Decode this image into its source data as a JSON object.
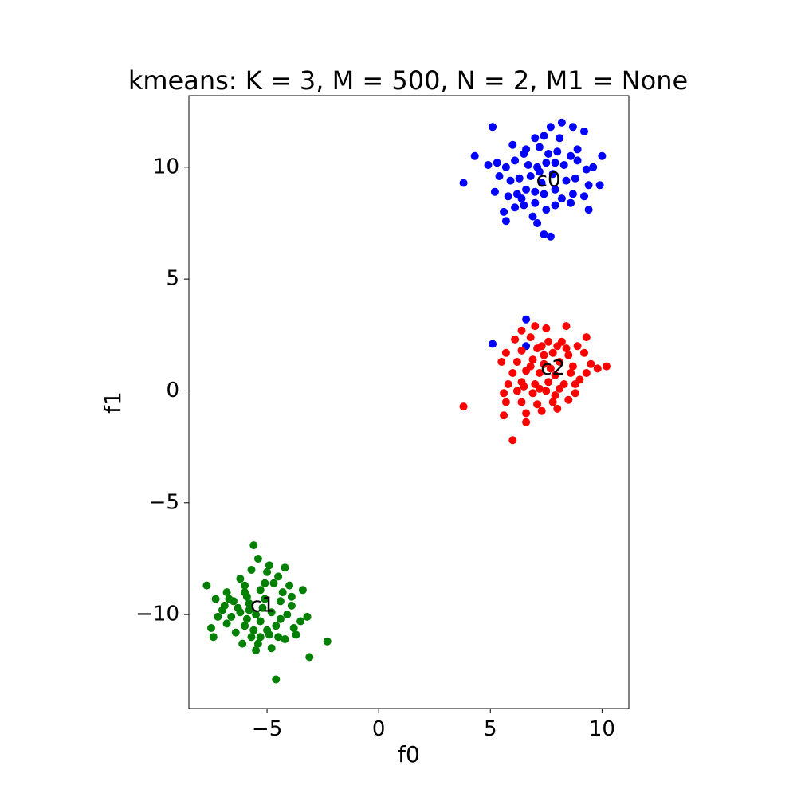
{
  "chart_data": {
    "type": "scatter",
    "title": "kmeans: K = 3, M = 500, N = 2, M1 = None",
    "xlabel": "f0",
    "ylabel": "f1",
    "xlim": [
      -8.5,
      11.2
    ],
    "ylim": [
      -14.2,
      13.2
    ],
    "xticks": [
      -5,
      0,
      5,
      10
    ],
    "xtick_labels": [
      "−5",
      "0",
      "5",
      "10"
    ],
    "yticks": [
      -10,
      -5,
      0,
      5,
      10
    ],
    "ytick_labels": [
      "−10",
      "−5",
      "0",
      "5",
      "10"
    ],
    "grid": false,
    "series": [
      {
        "color": "#0000ff",
        "centroid_label": "c0",
        "centroid": [
          7.6,
          9.4
        ],
        "points": [
          [
            5.1,
            11.8
          ],
          [
            7.4,
            11.4
          ],
          [
            8.2,
            12.0
          ],
          [
            8.7,
            11.8
          ],
          [
            9.2,
            11.6
          ],
          [
            7.7,
            11.8
          ],
          [
            6.6,
            10.8
          ],
          [
            7.2,
            10.9
          ],
          [
            7.6,
            10.6
          ],
          [
            8.0,
            10.7
          ],
          [
            8.9,
            10.8
          ],
          [
            4.3,
            10.5
          ],
          [
            5.3,
            10.2
          ],
          [
            5.7,
            10.0
          ],
          [
            6.1,
            10.3
          ],
          [
            6.7,
            10.1
          ],
          [
            7.1,
            10.0
          ],
          [
            7.5,
            10.2
          ],
          [
            8.3,
            10.1
          ],
          [
            8.9,
            10.3
          ],
          [
            9.3,
            9.9
          ],
          [
            10.0,
            10.5
          ],
          [
            3.8,
            9.3
          ],
          [
            5.4,
            9.6
          ],
          [
            5.9,
            9.4
          ],
          [
            6.3,
            9.5
          ],
          [
            6.8,
            9.6
          ],
          [
            7.3,
            9.3
          ],
          [
            7.8,
            9.7
          ],
          [
            8.4,
            9.4
          ],
          [
            8.8,
            9.5
          ],
          [
            9.4,
            9.2
          ],
          [
            9.9,
            9.2
          ],
          [
            5.2,
            8.9
          ],
          [
            5.8,
            8.7
          ],
          [
            6.2,
            8.8
          ],
          [
            6.6,
            9.0
          ],
          [
            7.0,
            8.9
          ],
          [
            7.4,
            8.8
          ],
          [
            7.9,
            9.0
          ],
          [
            8.2,
            8.6
          ],
          [
            8.7,
            8.8
          ],
          [
            9.2,
            8.7
          ],
          [
            5.6,
            8.0
          ],
          [
            6.1,
            8.2
          ],
          [
            6.5,
            8.3
          ],
          [
            7.0,
            8.4
          ],
          [
            7.5,
            8.1
          ],
          [
            7.9,
            8.3
          ],
          [
            8.6,
            8.4
          ],
          [
            9.4,
            8.1
          ],
          [
            5.7,
            7.6
          ],
          [
            7.1,
            7.5
          ],
          [
            7.4,
            7.0
          ],
          [
            7.7,
            6.9
          ],
          [
            6.9,
            7.8
          ],
          [
            6.4,
            8.6
          ],
          [
            7.2,
            9.8
          ],
          [
            7.9,
            10.2
          ],
          [
            8.6,
            10.5
          ],
          [
            6.0,
            11.0
          ],
          [
            6.5,
            10.6
          ],
          [
            4.9,
            10.1
          ],
          [
            9.6,
            10.0
          ],
          [
            8.1,
            11.3
          ],
          [
            7.0,
            11.3
          ],
          [
            6.6,
            2.0
          ],
          [
            5.1,
            2.1
          ],
          [
            6.6,
            3.2
          ]
        ]
      },
      {
        "color": "#008000",
        "centroid_label": "c1",
        "centroid": [
          -5.2,
          -9.6
        ],
        "points": [
          [
            -5.6,
            -6.9
          ],
          [
            -5.4,
            -7.5
          ],
          [
            -4.9,
            -7.8
          ],
          [
            -4.2,
            -7.9
          ],
          [
            -5.7,
            -8.0
          ],
          [
            -5.0,
            -8.1
          ],
          [
            -6.2,
            -8.4
          ],
          [
            -4.5,
            -8.3
          ],
          [
            -7.7,
            -8.7
          ],
          [
            -6.8,
            -9.0
          ],
          [
            -6.0,
            -9.0
          ],
          [
            -5.3,
            -8.9
          ],
          [
            -4.0,
            -8.7
          ],
          [
            -3.4,
            -8.9
          ],
          [
            -7.3,
            -9.3
          ],
          [
            -6.5,
            -9.4
          ],
          [
            -5.8,
            -9.5
          ],
          [
            -5.1,
            -9.3
          ],
          [
            -4.4,
            -9.4
          ],
          [
            -3.9,
            -9.6
          ],
          [
            -7.0,
            -9.8
          ],
          [
            -6.2,
            -9.9
          ],
          [
            -5.5,
            -10.0
          ],
          [
            -4.8,
            -9.9
          ],
          [
            -4.1,
            -10.0
          ],
          [
            -3.2,
            -10.1
          ],
          [
            -6.8,
            -10.4
          ],
          [
            -6.0,
            -10.5
          ],
          [
            -5.3,
            -10.3
          ],
          [
            -4.6,
            -10.5
          ],
          [
            -3.8,
            -10.6
          ],
          [
            -7.5,
            -10.6
          ],
          [
            -6.4,
            -10.8
          ],
          [
            -5.7,
            -11.0
          ],
          [
            -4.9,
            -10.9
          ],
          [
            -4.2,
            -11.1
          ],
          [
            -7.4,
            -11.0
          ],
          [
            -6.1,
            -11.3
          ],
          [
            -5.5,
            -11.6
          ],
          [
            -4.8,
            -11.5
          ],
          [
            -3.1,
            -11.9
          ],
          [
            -2.3,
            -11.2
          ],
          [
            -4.6,
            -12.9
          ],
          [
            -5.9,
            -9.2
          ],
          [
            -6.6,
            -10.1
          ],
          [
            -5.0,
            -10.7
          ],
          [
            -4.3,
            -9.0
          ],
          [
            -3.5,
            -10.3
          ],
          [
            -6.9,
            -9.6
          ],
          [
            -5.2,
            -9.7
          ],
          [
            -4.7,
            -8.6
          ],
          [
            -5.9,
            -10.2
          ],
          [
            -6.3,
            -9.7
          ],
          [
            -5.6,
            -10.7
          ],
          [
            -4.4,
            -10.2
          ],
          [
            -3.9,
            -9.2
          ],
          [
            -5.1,
            -8.6
          ],
          [
            -6.7,
            -9.3
          ],
          [
            -7.2,
            -10.1
          ],
          [
            -5.4,
            -11.3
          ],
          [
            -4.5,
            -11.0
          ],
          [
            -6.0,
            -8.7
          ],
          [
            -3.7,
            -10.9
          ],
          [
            -5.8,
            -9.8
          ],
          [
            -5.3,
            -11.0
          ]
        ]
      },
      {
        "color": "#ff0000",
        "centroid_label": "c2",
        "centroid": [
          7.8,
          1.0
        ],
        "points": [
          [
            6.4,
            2.7
          ],
          [
            7.0,
            2.9
          ],
          [
            7.5,
            2.8
          ],
          [
            8.4,
            2.9
          ],
          [
            9.3,
            2.4
          ],
          [
            6.1,
            2.3
          ],
          [
            6.8,
            2.4
          ],
          [
            7.6,
            2.2
          ],
          [
            8.2,
            2.2
          ],
          [
            8.9,
            2.0
          ],
          [
            5.7,
            1.7
          ],
          [
            6.4,
            1.8
          ],
          [
            7.1,
            1.9
          ],
          [
            7.8,
            1.7
          ],
          [
            8.5,
            1.6
          ],
          [
            9.2,
            1.7
          ],
          [
            5.5,
            1.3
          ],
          [
            6.2,
            1.3
          ],
          [
            6.9,
            1.4
          ],
          [
            7.4,
            1.2
          ],
          [
            8.1,
            1.3
          ],
          [
            8.7,
            1.1
          ],
          [
            9.5,
            1.2
          ],
          [
            10.2,
            1.1
          ],
          [
            6.0,
            0.8
          ],
          [
            6.6,
            0.9
          ],
          [
            7.2,
            0.8
          ],
          [
            7.9,
            0.7
          ],
          [
            8.6,
            0.8
          ],
          [
            9.3,
            0.8
          ],
          [
            5.8,
            0.3
          ],
          [
            6.4,
            0.4
          ],
          [
            7.0,
            0.3
          ],
          [
            7.6,
            0.4
          ],
          [
            8.3,
            0.3
          ],
          [
            9.0,
            0.5
          ],
          [
            5.6,
            -0.1
          ],
          [
            6.2,
            0.0
          ],
          [
            6.9,
            -0.1
          ],
          [
            7.5,
            0.0
          ],
          [
            8.1,
            0.1
          ],
          [
            8.8,
            -0.1
          ],
          [
            5.7,
            -0.5
          ],
          [
            6.4,
            -0.5
          ],
          [
            7.1,
            -0.6
          ],
          [
            7.8,
            -0.5
          ],
          [
            8.5,
            -0.4
          ],
          [
            5.6,
            -1.1
          ],
          [
            6.6,
            -1.0
          ],
          [
            7.3,
            -0.9
          ],
          [
            8.0,
            -0.8
          ],
          [
            6.6,
            -1.4
          ],
          [
            6.0,
            -2.2
          ],
          [
            3.8,
            -0.7
          ],
          [
            7.4,
            1.6
          ],
          [
            7.7,
            1.0
          ],
          [
            8.0,
            2.0
          ],
          [
            7.2,
            0.1
          ],
          [
            6.8,
            1.1
          ],
          [
            8.4,
            1.9
          ],
          [
            7.9,
            -0.2
          ],
          [
            7.3,
            2.0
          ],
          [
            8.8,
            0.3
          ],
          [
            6.5,
            0.2
          ],
          [
            9.8,
            1.0
          ]
        ]
      }
    ]
  }
}
